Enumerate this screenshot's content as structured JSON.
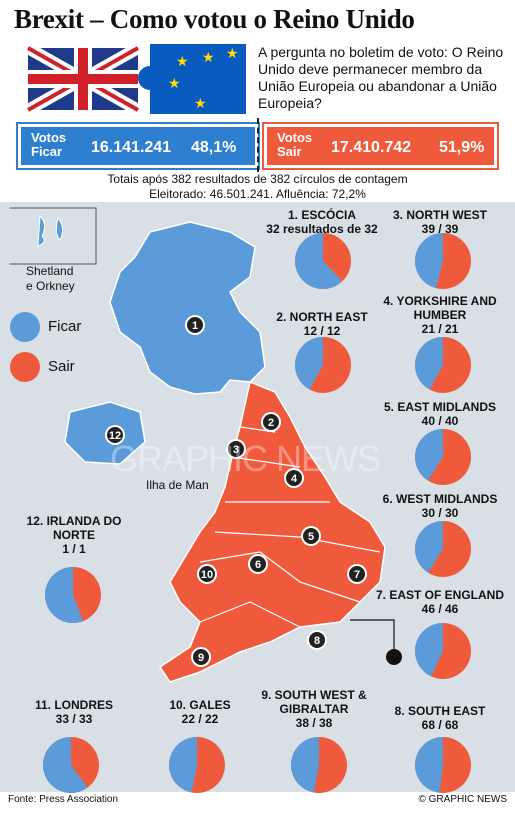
{
  "title": "Brexit – Como votou o Reino Unido",
  "question": "A pergunta no boletim de voto: O Reino Unido deve permanecer membro da União Europeia ou abandonar a União Europeia?",
  "results": {
    "remain": {
      "label1": "Votos",
      "label2": "Ficar",
      "count": "16.141.241",
      "pct": "48,1%"
    },
    "leave": {
      "label1": "Votos",
      "label2": "Sair",
      "count": "17.410.742",
      "pct": "51,9%"
    }
  },
  "summary": {
    "line1": "Totais após 382 resultados de 382 círculos de contagem",
    "line2": "Eleitorado: 46.501.241. Afluência: 72,2%"
  },
  "legend": {
    "remain": "Ficar",
    "leave": "Sair"
  },
  "map_labels": {
    "shetland": "Shetland\ne Orkney",
    "isle_of_man": "Ilha de Man"
  },
  "colors": {
    "remain": "#5b9bd9",
    "leave": "#f05a3c",
    "remain_bar": "#2f7fd0",
    "leave_bar": "#f05a3c"
  },
  "watermark": "GRAPHIC NEWS",
  "footer": {
    "source": "Fonte: Press Association",
    "credit": "© GRAPHIC NEWS"
  },
  "chart_data": {
    "type": "pie",
    "series_names": [
      "Ficar",
      "Sair"
    ],
    "regions": [
      {
        "num": "1",
        "name": "ESCÓCIA",
        "count": "32 resultados de 32",
        "remain": 62.0,
        "leave": 38.0
      },
      {
        "num": "2",
        "name": "NORTH EAST",
        "count": "12 / 12",
        "remain": 42.0,
        "leave": 58.0
      },
      {
        "num": "3",
        "name": "NORTH WEST",
        "count": "39 / 39",
        "remain": 46.0,
        "leave": 54.0
      },
      {
        "num": "4",
        "name": "YORKSHIRE AND HUMBER",
        "count": "21 / 21",
        "remain": 42.0,
        "leave": 58.0
      },
      {
        "num": "5",
        "name": "EAST MIDLANDS",
        "count": "40 / 40",
        "remain": 41.0,
        "leave": 59.0
      },
      {
        "num": "6",
        "name": "WEST MIDLANDS",
        "count": "30 / 30",
        "remain": 41.0,
        "leave": 59.0
      },
      {
        "num": "7",
        "name": "EAST OF ENGLAND",
        "count": "46 / 46",
        "remain": 43.0,
        "leave": 57.0
      },
      {
        "num": "8",
        "name": "SOUTH EAST",
        "count": "68 / 68",
        "remain": 48.0,
        "leave": 52.0
      },
      {
        "num": "9",
        "name": "SOUTH WEST & GIBRALTAR",
        "count": "38 / 38",
        "remain": 47.0,
        "leave": 53.0
      },
      {
        "num": "10",
        "name": "GALES",
        "count": "22 / 22",
        "remain": 47.0,
        "leave": 53.0
      },
      {
        "num": "11",
        "name": "LONDRES",
        "count": "33 / 33",
        "remain": 60.0,
        "leave": 40.0
      },
      {
        "num": "12",
        "name": "IRLANDA DO NORTE",
        "count": "1 / 1",
        "remain": 56.0,
        "leave": 44.0
      }
    ]
  }
}
